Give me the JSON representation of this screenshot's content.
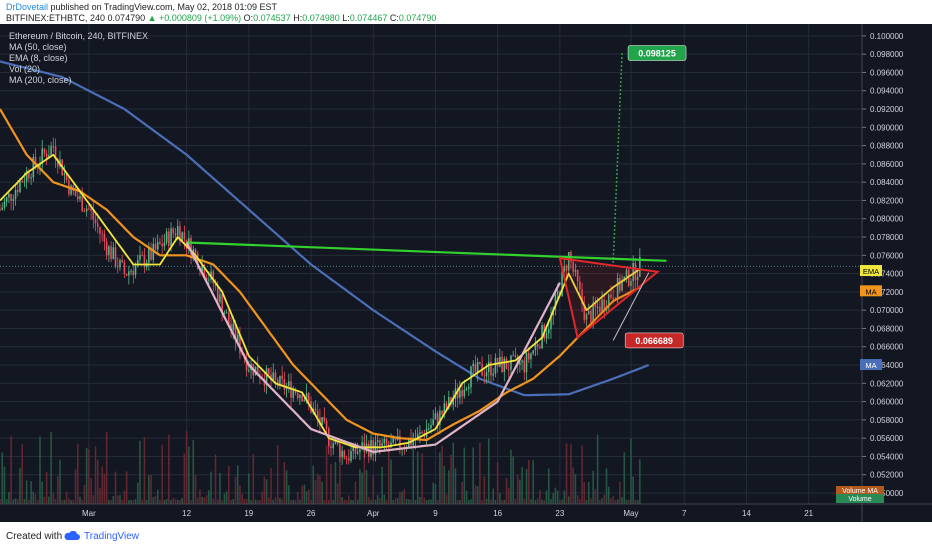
{
  "header": {
    "author": "DrDovetail",
    "published_text": "published on TradingView.com, May 02, 2018 01:09 EST",
    "symbol_interval": "BITFINEX:ETHBTC, 240",
    "last": "0.074790",
    "change": "+0.000809 (+1.09%)",
    "open_label": "O:",
    "open": "0.074537",
    "high_label": "H:",
    "high": "0.074980",
    "low_label": "L:",
    "low": "0.074467",
    "close_label": "C:",
    "close": "0.074790"
  },
  "legend": {
    "instrument": "Ethereum / Bitcoin, 240, BITFINEX",
    "indicators": [
      "MA (50, close)",
      "EMA (8, close)",
      "Vol (20)",
      "MA (200, close)"
    ]
  },
  "footer": {
    "created_with": "Created with",
    "brand": "TradingView"
  },
  "colors": {
    "background": "#131722",
    "candle_up": "#53b987",
    "candle_down": "#eb4d5c",
    "ema": "#f0e63c",
    "ma50": "#f0941e",
    "ma200": "#4a6fb8",
    "resistance": "#33d12e",
    "cup_arc": "#e0b4c6",
    "triangle": "#e2262a",
    "target_green": "#21a44a",
    "target_red": "#c62828"
  },
  "chart_data": {
    "type": "candlestick",
    "y_ticks": [
      "0.100000",
      "0.098000",
      "0.096000",
      "0.094000",
      "0.092000",
      "0.090000",
      "0.088000",
      "0.086000",
      "0.084000",
      "0.082000",
      "0.080000",
      "0.078000",
      "0.076000",
      "0.074000",
      "0.072000",
      "0.070000",
      "0.068000",
      "0.066000",
      "0.064000",
      "0.062000",
      "0.060000",
      "0.058000",
      "0.056000",
      "0.054000",
      "0.052000",
      "0.050000"
    ],
    "ylim": [
      0.0488,
      0.1013
    ],
    "x_ticks": [
      "Mar",
      "12",
      "19",
      "26",
      "Apr",
      "9",
      "16",
      "23",
      "May",
      "7",
      "14",
      "21"
    ],
    "x_tick_dates": [
      "2018-03-01",
      "2018-03-12",
      "2018-03-19",
      "2018-03-26",
      "2018-04-02",
      "2018-04-09",
      "2018-04-16",
      "2018-04-23",
      "2018-05-01",
      "2018-05-07",
      "2018-05-14",
      "2018-05-21"
    ],
    "xlim": [
      "2018-02-19",
      "2018-05-27"
    ],
    "price_path": {
      "dates": [
        "2018-02-19",
        "2018-02-22",
        "2018-02-25",
        "2018-02-27",
        "2018-03-01",
        "2018-03-03",
        "2018-03-05",
        "2018-03-08",
        "2018-03-11",
        "2018-03-13",
        "2018-03-15",
        "2018-03-17",
        "2018-03-19",
        "2018-03-22",
        "2018-03-25",
        "2018-03-28",
        "2018-03-30",
        "2018-04-01",
        "2018-04-04",
        "2018-04-07",
        "2018-04-10",
        "2018-04-13",
        "2018-04-16",
        "2018-04-19",
        "2018-04-22",
        "2018-04-24",
        "2018-04-26",
        "2018-04-29",
        "2018-05-02"
      ],
      "values": [
        0.081,
        0.085,
        0.088,
        0.083,
        0.081,
        0.077,
        0.074,
        0.076,
        0.079,
        0.076,
        0.073,
        0.068,
        0.064,
        0.062,
        0.061,
        0.056,
        0.054,
        0.055,
        0.055,
        0.056,
        0.059,
        0.063,
        0.064,
        0.064,
        0.069,
        0.076,
        0.069,
        0.072,
        0.0748
      ]
    },
    "ema8": {
      "dates": [
        "2018-02-19",
        "2018-02-22",
        "2018-02-25",
        "2018-02-28",
        "2018-03-03",
        "2018-03-06",
        "2018-03-09",
        "2018-03-11",
        "2018-03-13",
        "2018-03-16",
        "2018-03-19",
        "2018-03-22",
        "2018-03-25",
        "2018-03-28",
        "2018-03-31",
        "2018-04-03",
        "2018-04-06",
        "2018-04-09",
        "2018-04-12",
        "2018-04-15",
        "2018-04-18",
        "2018-04-21",
        "2018-04-24",
        "2018-04-26",
        "2018-04-29",
        "2018-05-02"
      ],
      "values": [
        0.082,
        0.085,
        0.087,
        0.083,
        0.079,
        0.075,
        0.075,
        0.078,
        0.076,
        0.072,
        0.065,
        0.062,
        0.061,
        0.056,
        0.055,
        0.055,
        0.0555,
        0.057,
        0.062,
        0.064,
        0.0645,
        0.067,
        0.074,
        0.07,
        0.0725,
        0.0745
      ]
    },
    "ma50": {
      "dates": [
        "2018-02-19",
        "2018-02-22",
        "2018-02-25",
        "2018-02-28",
        "2018-03-03",
        "2018-03-06",
        "2018-03-09",
        "2018-03-12",
        "2018-03-15",
        "2018-03-18",
        "2018-03-21",
        "2018-03-24",
        "2018-03-27",
        "2018-03-30",
        "2018-04-02",
        "2018-04-05",
        "2018-04-08",
        "2018-04-11",
        "2018-04-14",
        "2018-04-17",
        "2018-04-20",
        "2018-04-23",
        "2018-04-26",
        "2018-04-29",
        "2018-05-02"
      ],
      "values": [
        0.092,
        0.087,
        0.084,
        0.083,
        0.081,
        0.078,
        0.076,
        0.076,
        0.075,
        0.072,
        0.068,
        0.064,
        0.061,
        0.058,
        0.0565,
        0.056,
        0.0558,
        0.0575,
        0.059,
        0.061,
        0.0625,
        0.065,
        0.068,
        0.071,
        0.0725
      ]
    },
    "ma200": {
      "dates": [
        "2018-02-19",
        "2018-02-26",
        "2018-03-05",
        "2018-03-12",
        "2018-03-19",
        "2018-03-26",
        "2018-04-02",
        "2018-04-09",
        "2018-04-14",
        "2018-04-19",
        "2018-04-24",
        "2018-04-29",
        "2018-05-03"
      ],
      "values": [
        0.0972,
        0.0955,
        0.092,
        0.087,
        0.081,
        0.075,
        0.07,
        0.0655,
        0.0625,
        0.0607,
        0.0608,
        0.0625,
        0.064
      ]
    },
    "resistance_line": {
      "dates": [
        "2018-03-12",
        "2018-05-05"
      ],
      "values": [
        0.0774,
        0.0754
      ]
    },
    "cup_arc": {
      "dates": [
        "2018-03-12",
        "2018-03-19",
        "2018-03-26",
        "2018-04-02",
        "2018-04-09",
        "2018-04-16",
        "2018-04-23"
      ],
      "values": [
        0.0774,
        0.064,
        0.057,
        0.0545,
        0.0553,
        0.06,
        0.073
      ]
    },
    "triangle": {
      "dates": [
        "2018-04-23",
        "2018-05-04",
        "2018-04-25"
      ],
      "values": [
        0.0757,
        0.0742,
        0.067
      ]
    },
    "projections": [
      {
        "label": "0.098125",
        "value": 0.098125,
        "from_date": "2018-04-29",
        "from_value": 0.0752,
        "to_date": "2018-04-30"
      },
      {
        "label": "0.066689",
        "value": 0.066689,
        "from_date": "2018-05-03",
        "from_value": 0.0741,
        "to_date": "2018-04-29"
      }
    ],
    "price_labels": [
      "EMA",
      "MA",
      "MA"
    ],
    "volume_labels": [
      "Volume MA",
      "Volume"
    ],
    "annotations_current_price": 0.0748,
    "grid": true
  }
}
